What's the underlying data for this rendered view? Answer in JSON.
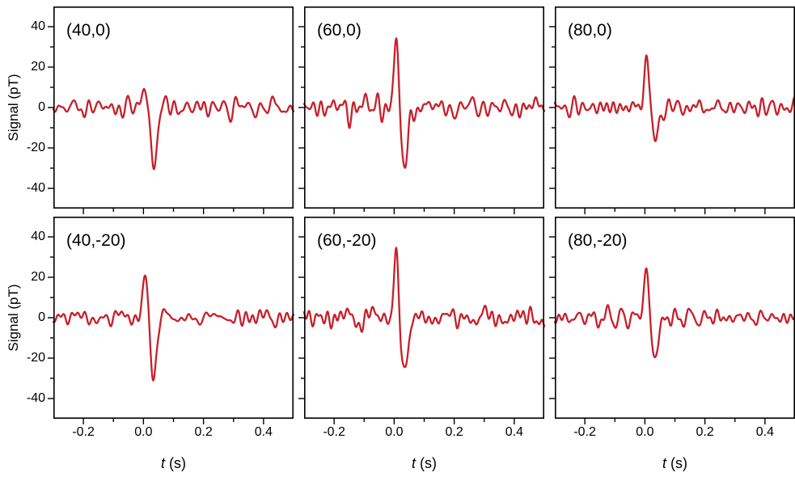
{
  "chart_data": {
    "type": "line",
    "title": "",
    "xlabel": "t (s)",
    "ylabel": "Signal (pT)",
    "xlim": [
      -0.3,
      0.5
    ],
    "ylim": [
      -50,
      50
    ],
    "xticks": [
      -0.2,
      0.0,
      0.2,
      0.4
    ],
    "xtick_labels": [
      "-0.2",
      "0.0",
      "0.2",
      "0.4"
    ],
    "xtick_minor": [
      -0.1,
      0.1,
      0.3
    ],
    "yticks": [
      40,
      20,
      0,
      -20,
      -40
    ],
    "ytick_labels": [
      "40",
      "20",
      "0",
      "-20",
      "-40"
    ],
    "ytick_minor": [
      30,
      10,
      -10,
      -30
    ],
    "grid": false,
    "legend": false,
    "line_color": "#c7202b",
    "frame_color": "#000000",
    "noise_rms_pT": 2.2,
    "spike": {
      "t_positive_s": 0.006,
      "t_negative_s": 0.034,
      "width_positive_s": 0.008,
      "width_negative_s": 0.011
    },
    "layout": "2 rows x 3 columns",
    "panels": [
      {
        "label": "(40,0)",
        "peak_positive_pT": 12,
        "peak_negative_pT": -27
      },
      {
        "label": "(60,0)",
        "peak_positive_pT": 36,
        "peak_negative_pT": -31
      },
      {
        "label": "(80,0)",
        "peak_positive_pT": 27,
        "peak_negative_pT": -17
      },
      {
        "label": "(40,-20)",
        "peak_positive_pT": 23,
        "peak_negative_pT": -26
      },
      {
        "label": "(60,-20)",
        "peak_positive_pT": 34,
        "peak_negative_pT": -29
      },
      {
        "label": "(80,-20)",
        "peak_positive_pT": 26,
        "peak_negative_pT": -21
      }
    ]
  }
}
